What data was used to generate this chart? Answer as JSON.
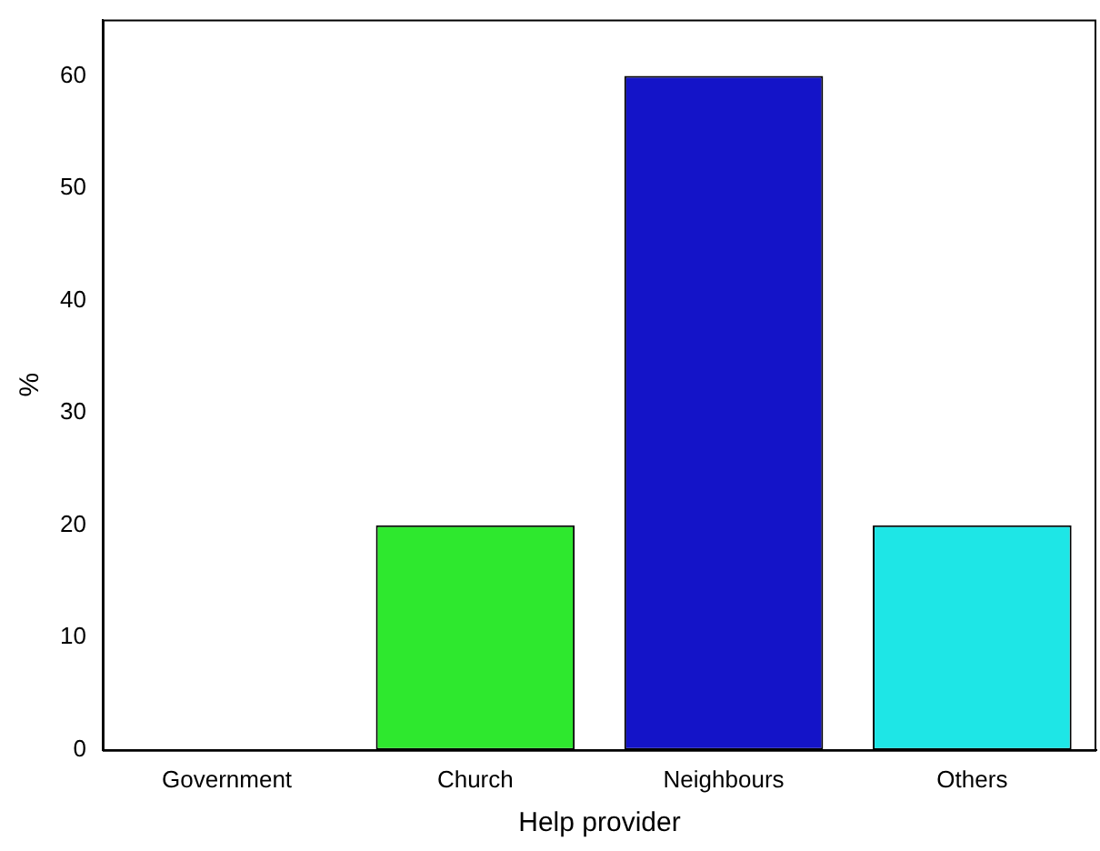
{
  "chart_data": {
    "type": "bar",
    "xlabel": "Help provider",
    "ylabel": "%",
    "categories": [
      "Government",
      "Church",
      "Neighbours",
      "Others"
    ],
    "values": [
      0,
      20,
      60,
      20
    ],
    "colors": [
      "#1414c8",
      "#2ee82e",
      "#1414c8",
      "#1ee6e6"
    ],
    "ylim": [
      0,
      65
    ],
    "yticks": [
      0,
      10,
      20,
      30,
      40,
      50,
      60
    ],
    "grid": false,
    "legend": false
  }
}
